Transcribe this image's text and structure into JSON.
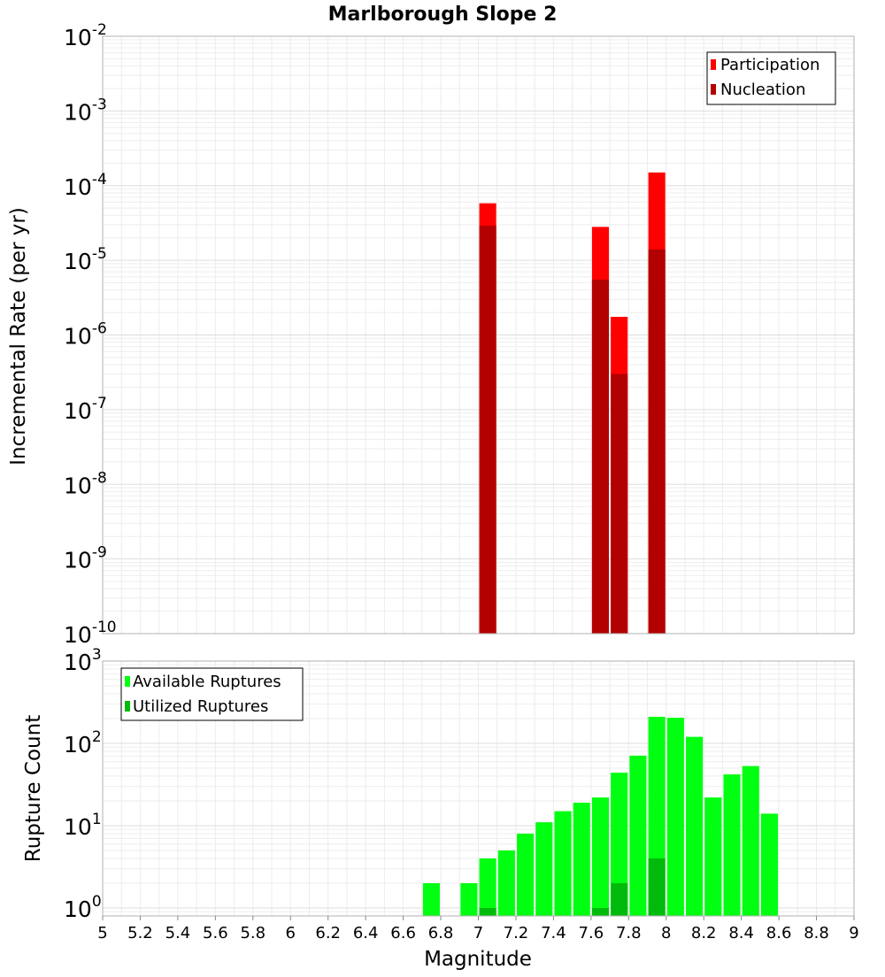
{
  "chart_data": [
    {
      "type": "bar",
      "title": "Marlborough Slope 2",
      "xlabel": "",
      "ylabel": "Incremental Rate (per yr)",
      "y_scale": "log",
      "xlim": [
        5,
        9
      ],
      "ylim": [
        1e-10,
        0.01
      ],
      "y_ticks": [
        {
          "base": "10",
          "exp": "-10",
          "value": 1e-10
        },
        {
          "base": "10",
          "exp": "-9",
          "value": 1e-09
        },
        {
          "base": "10",
          "exp": "-8",
          "value": 1e-08
        },
        {
          "base": "10",
          "exp": "-7",
          "value": 1e-07
        },
        {
          "base": "10",
          "exp": "-6",
          "value": 1e-06
        },
        {
          "base": "10",
          "exp": "-5",
          "value": 1e-05
        },
        {
          "base": "10",
          "exp": "-4",
          "value": 0.0001
        },
        {
          "base": "10",
          "exp": "-3",
          "value": 0.001
        },
        {
          "base": "10",
          "exp": "-2",
          "value": 0.01
        }
      ],
      "legend_position": "top-right",
      "grid": true,
      "series": [
        {
          "name": "Participation",
          "color": "#ff0000",
          "points": [
            [
              7.05,
              5.8e-05
            ],
            [
              7.65,
              2.8e-05
            ],
            [
              7.75,
              1.75e-06
            ],
            [
              7.95,
              0.00015
            ]
          ]
        },
        {
          "name": "Nucleation",
          "color": "#b30000",
          "points": [
            [
              7.05,
              2.9e-05
            ],
            [
              7.65,
              5.5e-06
            ],
            [
              7.75,
              3e-07
            ],
            [
              7.95,
              1.4e-05
            ]
          ]
        }
      ]
    },
    {
      "type": "bar",
      "title": "",
      "xlabel": "Magnitude",
      "ylabel": "Rupture Count",
      "y_scale": "log",
      "xlim": [
        5,
        9
      ],
      "ylim": [
        0.8,
        1000
      ],
      "x_ticks": [
        "5",
        "5.2",
        "5.4",
        "5.6",
        "5.8",
        "6",
        "6.2",
        "6.4",
        "6.6",
        "6.8",
        "7",
        "7.2",
        "7.4",
        "7.6",
        "7.8",
        "8",
        "8.2",
        "8.4",
        "8.6",
        "8.8",
        "9"
      ],
      "y_ticks": [
        {
          "base": "10",
          "exp": "0",
          "value": 1
        },
        {
          "base": "10",
          "exp": "1",
          "value": 10
        },
        {
          "base": "10",
          "exp": "2",
          "value": 100
        },
        {
          "base": "10",
          "exp": "3",
          "value": 1000
        }
      ],
      "legend_position": "top-left",
      "grid": true,
      "series": [
        {
          "name": "Available Ruptures",
          "color": "#00ff11",
          "points": [
            [
              6.75,
              2
            ],
            [
              6.95,
              2
            ],
            [
              7.05,
              4
            ],
            [
              7.15,
              5
            ],
            [
              7.25,
              8
            ],
            [
              7.35,
              11
            ],
            [
              7.45,
              15
            ],
            [
              7.55,
              19
            ],
            [
              7.65,
              22
            ],
            [
              7.75,
              44
            ],
            [
              7.85,
              71
            ],
            [
              7.95,
              210
            ],
            [
              8.05,
              205
            ],
            [
              8.15,
              120
            ],
            [
              8.25,
              22
            ],
            [
              8.35,
              42
            ],
            [
              8.45,
              53
            ],
            [
              8.55,
              14
            ]
          ]
        },
        {
          "name": "Utilized Ruptures",
          "color": "#00bb0c",
          "points": [
            [
              7.05,
              1
            ],
            [
              7.65,
              1
            ],
            [
              7.75,
              2
            ],
            [
              7.95,
              4
            ]
          ]
        }
      ]
    }
  ]
}
